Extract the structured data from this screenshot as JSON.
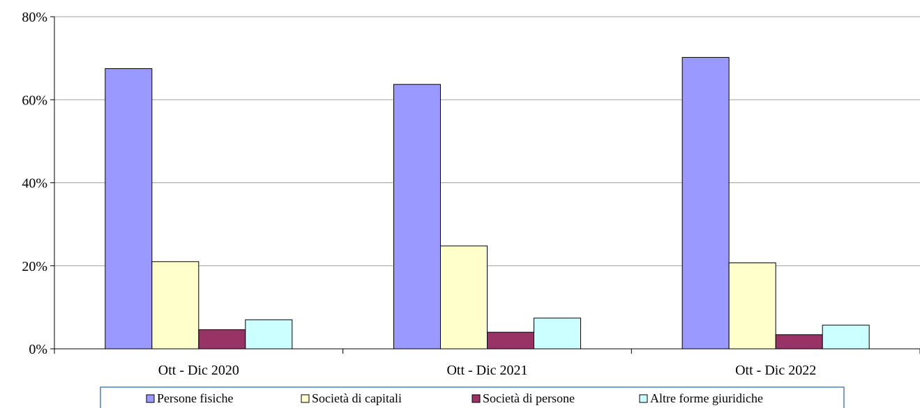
{
  "chart_data": {
    "type": "bar",
    "title": "",
    "xlabel": "",
    "ylabel": "",
    "categories": [
      "Ott - Dic 2020",
      "Ott - Dic 2021",
      "Ott - Dic 2022"
    ],
    "series": [
      {
        "name": "Persone fisiche",
        "values": [
          67.5,
          63.7,
          70.2
        ],
        "color": "#9999ff"
      },
      {
        "name": "Società di capitali",
        "values": [
          21.0,
          24.8,
          20.7
        ],
        "color": "#ffffcc"
      },
      {
        "name": "Società di persone",
        "values": [
          4.6,
          4.0,
          3.4
        ],
        "color": "#993366"
      },
      {
        "name": "Altre forme giuridiche",
        "values": [
          7.0,
          7.4,
          5.7
        ],
        "color": "#ccffff"
      }
    ],
    "ylim": [
      0,
      80
    ],
    "yticks": [
      0,
      20,
      40,
      60,
      80
    ],
    "ytick_labels": [
      "0%",
      "20%",
      "40%",
      "60%",
      "80%"
    ],
    "grid": true,
    "legend_position": "bottom",
    "colors": {
      "gridline": "#a0a0a0",
      "axis": "#000000",
      "legend_border": "#4f81bd",
      "bar_outline": "#000000"
    }
  }
}
